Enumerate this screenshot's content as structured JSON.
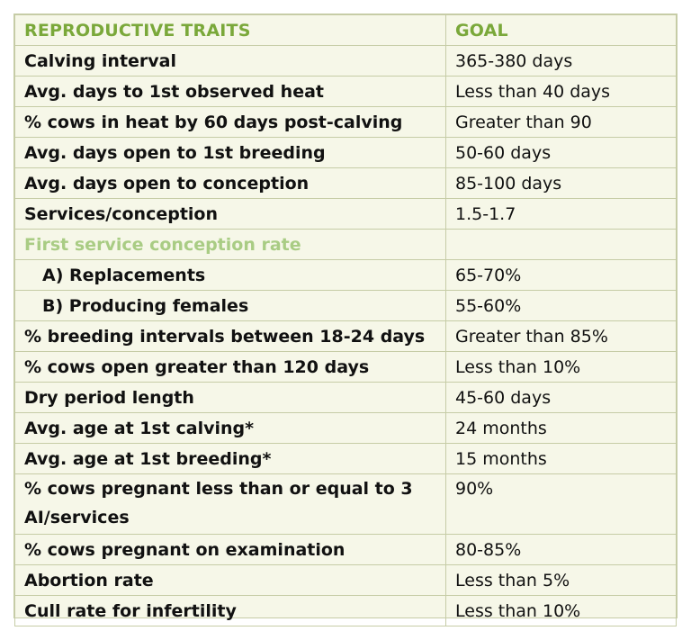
{
  "table": {
    "headers": [
      "REPRODUCTIVE TRAITS",
      "GOAL"
    ],
    "rows": [
      {
        "trait": "Calving interval",
        "goal": "365-380 days"
      },
      {
        "trait": "Avg. days to 1st observed heat",
        "goal": "Less than 40 days"
      },
      {
        "trait": "% cows in heat by 60 days post-calving",
        "goal": "Greater than 90"
      },
      {
        "trait": "Avg. days open to 1st breeding",
        "goal": "50-60 days"
      },
      {
        "trait": "Avg. days open to conception",
        "goal": "85-100 days"
      },
      {
        "trait": "Services/conception",
        "goal": "1.5-1.7"
      },
      {
        "trait": "First service conception rate",
        "goal": ""
      },
      {
        "trait": "A) Replacements",
        "goal": "65-70%"
      },
      {
        "trait": "B) Producing females",
        "goal": "55-60%"
      },
      {
        "trait": "% breeding intervals between 18-24 days",
        "goal": "Greater than 85%"
      },
      {
        "trait": "% cows open greater than 120 days",
        "goal": "Less than 10%"
      },
      {
        "trait": "Dry period length",
        "goal": "45-60 days"
      },
      {
        "trait": "Avg. age at 1st calving*",
        "goal": "24 months"
      },
      {
        "trait": "Avg. age at 1st breeding*",
        "goal": "15 months"
      },
      {
        "trait": "% cows pregnant less than or equal to 3 AI/services",
        "goal": "90%"
      },
      {
        "trait": "% cows pregnant on examination",
        "goal": "80-85%"
      },
      {
        "trait": "Abortion rate",
        "goal": "Less than 5%"
      },
      {
        "trait": "Cull rate for infertility",
        "goal": "Less than 10%"
      }
    ]
  }
}
